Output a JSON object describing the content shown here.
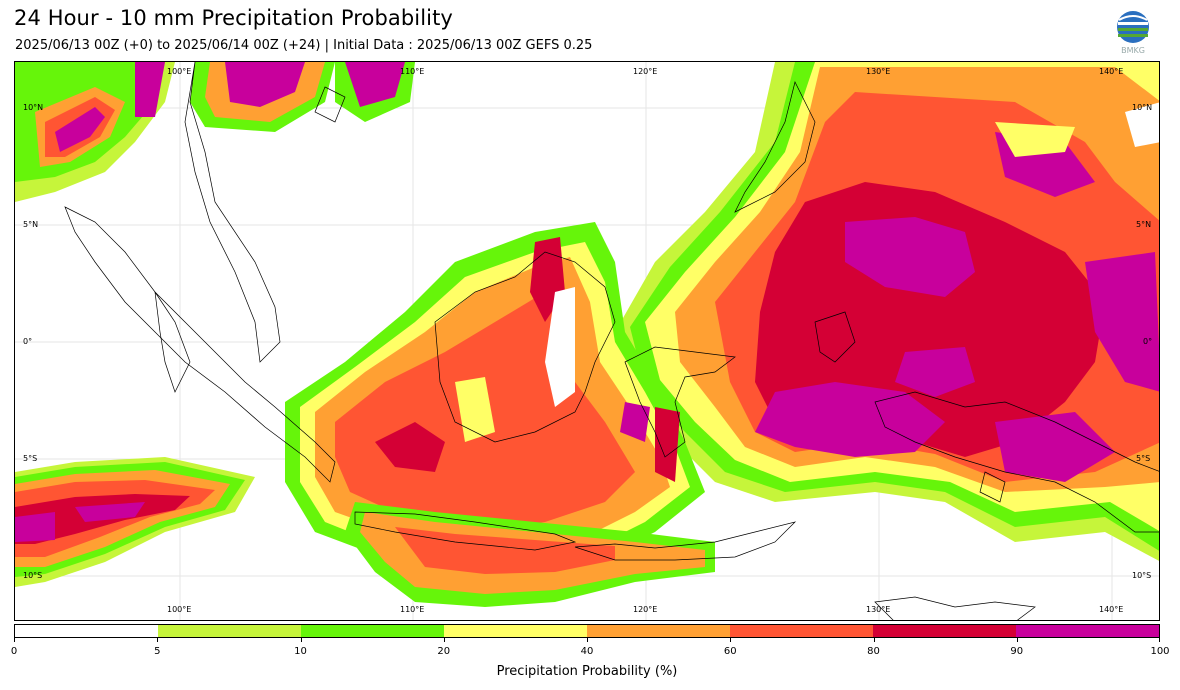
{
  "header": {
    "title": "24 Hour - 10 mm Precipitation Probability",
    "subtitle": "2025/06/13 00Z (+0) to 2025/06/14 00Z (+24) | Initial Data : 2025/06/13 00Z GEFS 0.25",
    "logo_text": "BMKG"
  },
  "map": {
    "lon_top": [
      "100°E",
      "110°E",
      "120°E",
      "130°E",
      "140°E"
    ],
    "lon_bottom": [
      "100°E",
      "110°E",
      "120°E",
      "130°E",
      "140°E"
    ],
    "lat_left": [
      "10°N",
      "5°N",
      "0°",
      "5°S",
      "10°S"
    ],
    "lat_right": [
      "10°N",
      "5°N",
      "0°",
      "5°S",
      "10°S"
    ]
  },
  "colorbar": {
    "label": "Precipitation Probability (%)",
    "ticks": [
      "0",
      "5",
      "10",
      "20",
      "40",
      "60",
      "80",
      "90",
      "100"
    ],
    "colors": [
      "#ffffff",
      "#c6f53a",
      "#66f50a",
      "#ffff66",
      "#ffa033",
      "#ff5533",
      "#d40035",
      "#c8009c"
    ]
  },
  "colors": {
    "prob_5": "#c6f53a",
    "prob_10": "#66f50a",
    "prob_20": "#ffff66",
    "prob_40": "#ffa033",
    "prob_60": "#ff5533",
    "prob_80": "#d40035",
    "prob_90": "#c8009c"
  }
}
